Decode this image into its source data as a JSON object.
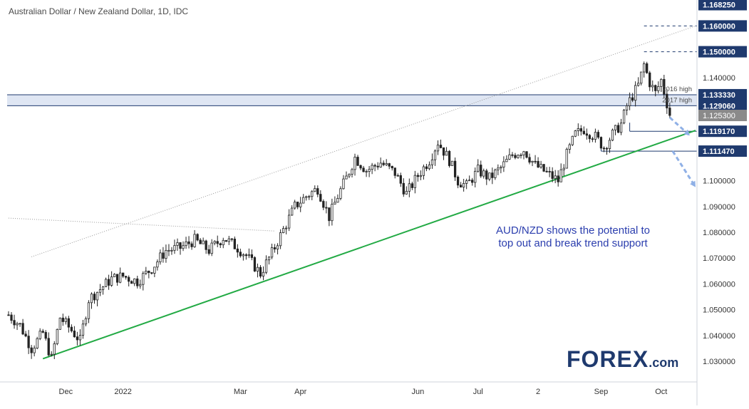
{
  "chart_data": {
    "type": "candlestick",
    "title": "Australian Dollar / New Zealand Dollar, 1D, IDC",
    "ylim": [
      1.022,
      1.1695
    ],
    "y_ticks": [
      "1.030000",
      "1.040000",
      "1.050000",
      "1.060000",
      "1.070000",
      "1.080000",
      "1.090000",
      "1.100000",
      "1.140000"
    ],
    "x_ticks": [
      {
        "label": "Dec",
        "index": 20
      },
      {
        "label": "2022",
        "index": 40
      },
      {
        "label": "Mar",
        "index": 81
      },
      {
        "label": "Apr",
        "index": 102
      },
      {
        "label": "Jun",
        "index": 143
      },
      {
        "label": "Jul",
        "index": 164
      },
      {
        "label": "2",
        "index": 185
      },
      {
        "label": "Sep",
        "index": 207
      },
      {
        "label": "Oct",
        "index": 228
      }
    ],
    "series_anchors": [
      [
        0,
        1.048
      ],
      [
        4,
        1.044
      ],
      [
        8,
        1.035
      ],
      [
        12,
        1.041
      ],
      [
        15,
        1.031
      ],
      [
        18,
        1.047
      ],
      [
        22,
        1.042
      ],
      [
        25,
        1.038
      ],
      [
        28,
        1.054
      ],
      [
        32,
        1.058
      ],
      [
        36,
        1.062
      ],
      [
        40,
        1.063
      ],
      [
        45,
        1.061
      ],
      [
        50,
        1.066
      ],
      [
        55,
        1.073
      ],
      [
        60,
        1.074
      ],
      [
        65,
        1.077
      ],
      [
        70,
        1.073
      ],
      [
        75,
        1.078
      ],
      [
        80,
        1.074
      ],
      [
        83,
        1.071
      ],
      [
        88,
        1.064
      ],
      [
        92,
        1.072
      ],
      [
        96,
        1.081
      ],
      [
        100,
        1.09
      ],
      [
        104,
        1.094
      ],
      [
        108,
        1.097
      ],
      [
        112,
        1.086
      ],
      [
        115,
        1.094
      ],
      [
        118,
        1.101
      ],
      [
        121,
        1.109
      ],
      [
        125,
        1.104
      ],
      [
        130,
        1.107
      ],
      [
        135,
        1.103
      ],
      [
        139,
        1.095
      ],
      [
        143,
        1.102
      ],
      [
        147,
        1.108
      ],
      [
        150,
        1.115
      ],
      [
        154,
        1.108
      ],
      [
        157,
        1.1
      ],
      [
        160,
        1.098
      ],
      [
        164,
        1.104
      ],
      [
        168,
        1.101
      ],
      [
        172,
        1.105
      ],
      [
        176,
        1.11
      ],
      [
        180,
        1.112
      ],
      [
        184,
        1.106
      ],
      [
        188,
        1.103
      ],
      [
        192,
        1.1
      ],
      [
        195,
        1.11
      ],
      [
        198,
        1.118
      ],
      [
        201,
        1.12
      ],
      [
        205,
        1.117
      ],
      [
        208,
        1.113
      ],
      [
        211,
        1.118
      ],
      [
        214,
        1.122
      ],
      [
        216,
        1.129
      ],
      [
        218,
        1.133
      ],
      [
        220,
        1.137
      ],
      [
        222,
        1.145
      ],
      [
        224,
        1.138
      ],
      [
        226,
        1.134
      ],
      [
        228,
        1.139
      ],
      [
        230,
        1.13
      ],
      [
        231,
        1.1253
      ]
    ],
    "price_levels": [
      {
        "label": "1.168250",
        "value": 1.16825,
        "color": "#1f3a6e",
        "style": "label"
      },
      {
        "label": "1.160000",
        "value": 1.16,
        "color": "#1f3a6e",
        "style": "dashed"
      },
      {
        "label": "1.150000",
        "value": 1.15,
        "color": "#1f3a6e",
        "style": "dashed"
      },
      {
        "label": "1.133330",
        "value": 1.13333,
        "color": "#1f3a6e",
        "style": "solid"
      },
      {
        "label": "1.129060",
        "value": 1.12906,
        "color": "#1f3a6e",
        "style": "solid"
      },
      {
        "label": "1.119170",
        "value": 1.11917,
        "color": "#1f3a6e",
        "style": "solid"
      },
      {
        "label": "1.111470",
        "value": 1.11147,
        "color": "#1f3a6e",
        "style": "solid"
      }
    ],
    "last_price": {
      "label": "1.125300",
      "value": 1.1253,
      "color": "#8a8a8a"
    },
    "zone": {
      "from": 1.12906,
      "to": 1.13333,
      "fill": "#dfe6f3"
    },
    "zone_labels": [
      {
        "text": "2016 high",
        "value": 1.13333
      },
      {
        "text": "2017 high",
        "value": 1.12906
      }
    ],
    "trendline": {
      "from": [
        12,
        1.031
      ],
      "to": [
        240,
        1.1195
      ],
      "color": "#22aa44"
    },
    "channel_line": {
      "from": [
        8,
        1.0705
      ],
      "to": [
        240,
        1.16
      ],
      "color": "#9a9a9a"
    },
    "old_line": {
      "from": [
        0,
        1.0855
      ],
      "to": [
        93,
        1.0805
      ],
      "color": "#9a9a9a"
    },
    "arrows": [
      {
        "from": [
          231,
          1.1245
        ],
        "to": [
          238,
          1.1175
        ]
      },
      {
        "from": [
          232,
          1.1115
        ],
        "to": [
          240,
          1.0975
        ]
      }
    ],
    "annotation": [
      "AUD/NZD shows the potential to",
      "top out and break trend support"
    ],
    "colors": {
      "up": "#ffffff",
      "down": "#222222",
      "wick": "#222222",
      "annotation": "#2b3eae"
    }
  },
  "watermark": {
    "brand": "FOREX",
    "suffix": ".com"
  }
}
